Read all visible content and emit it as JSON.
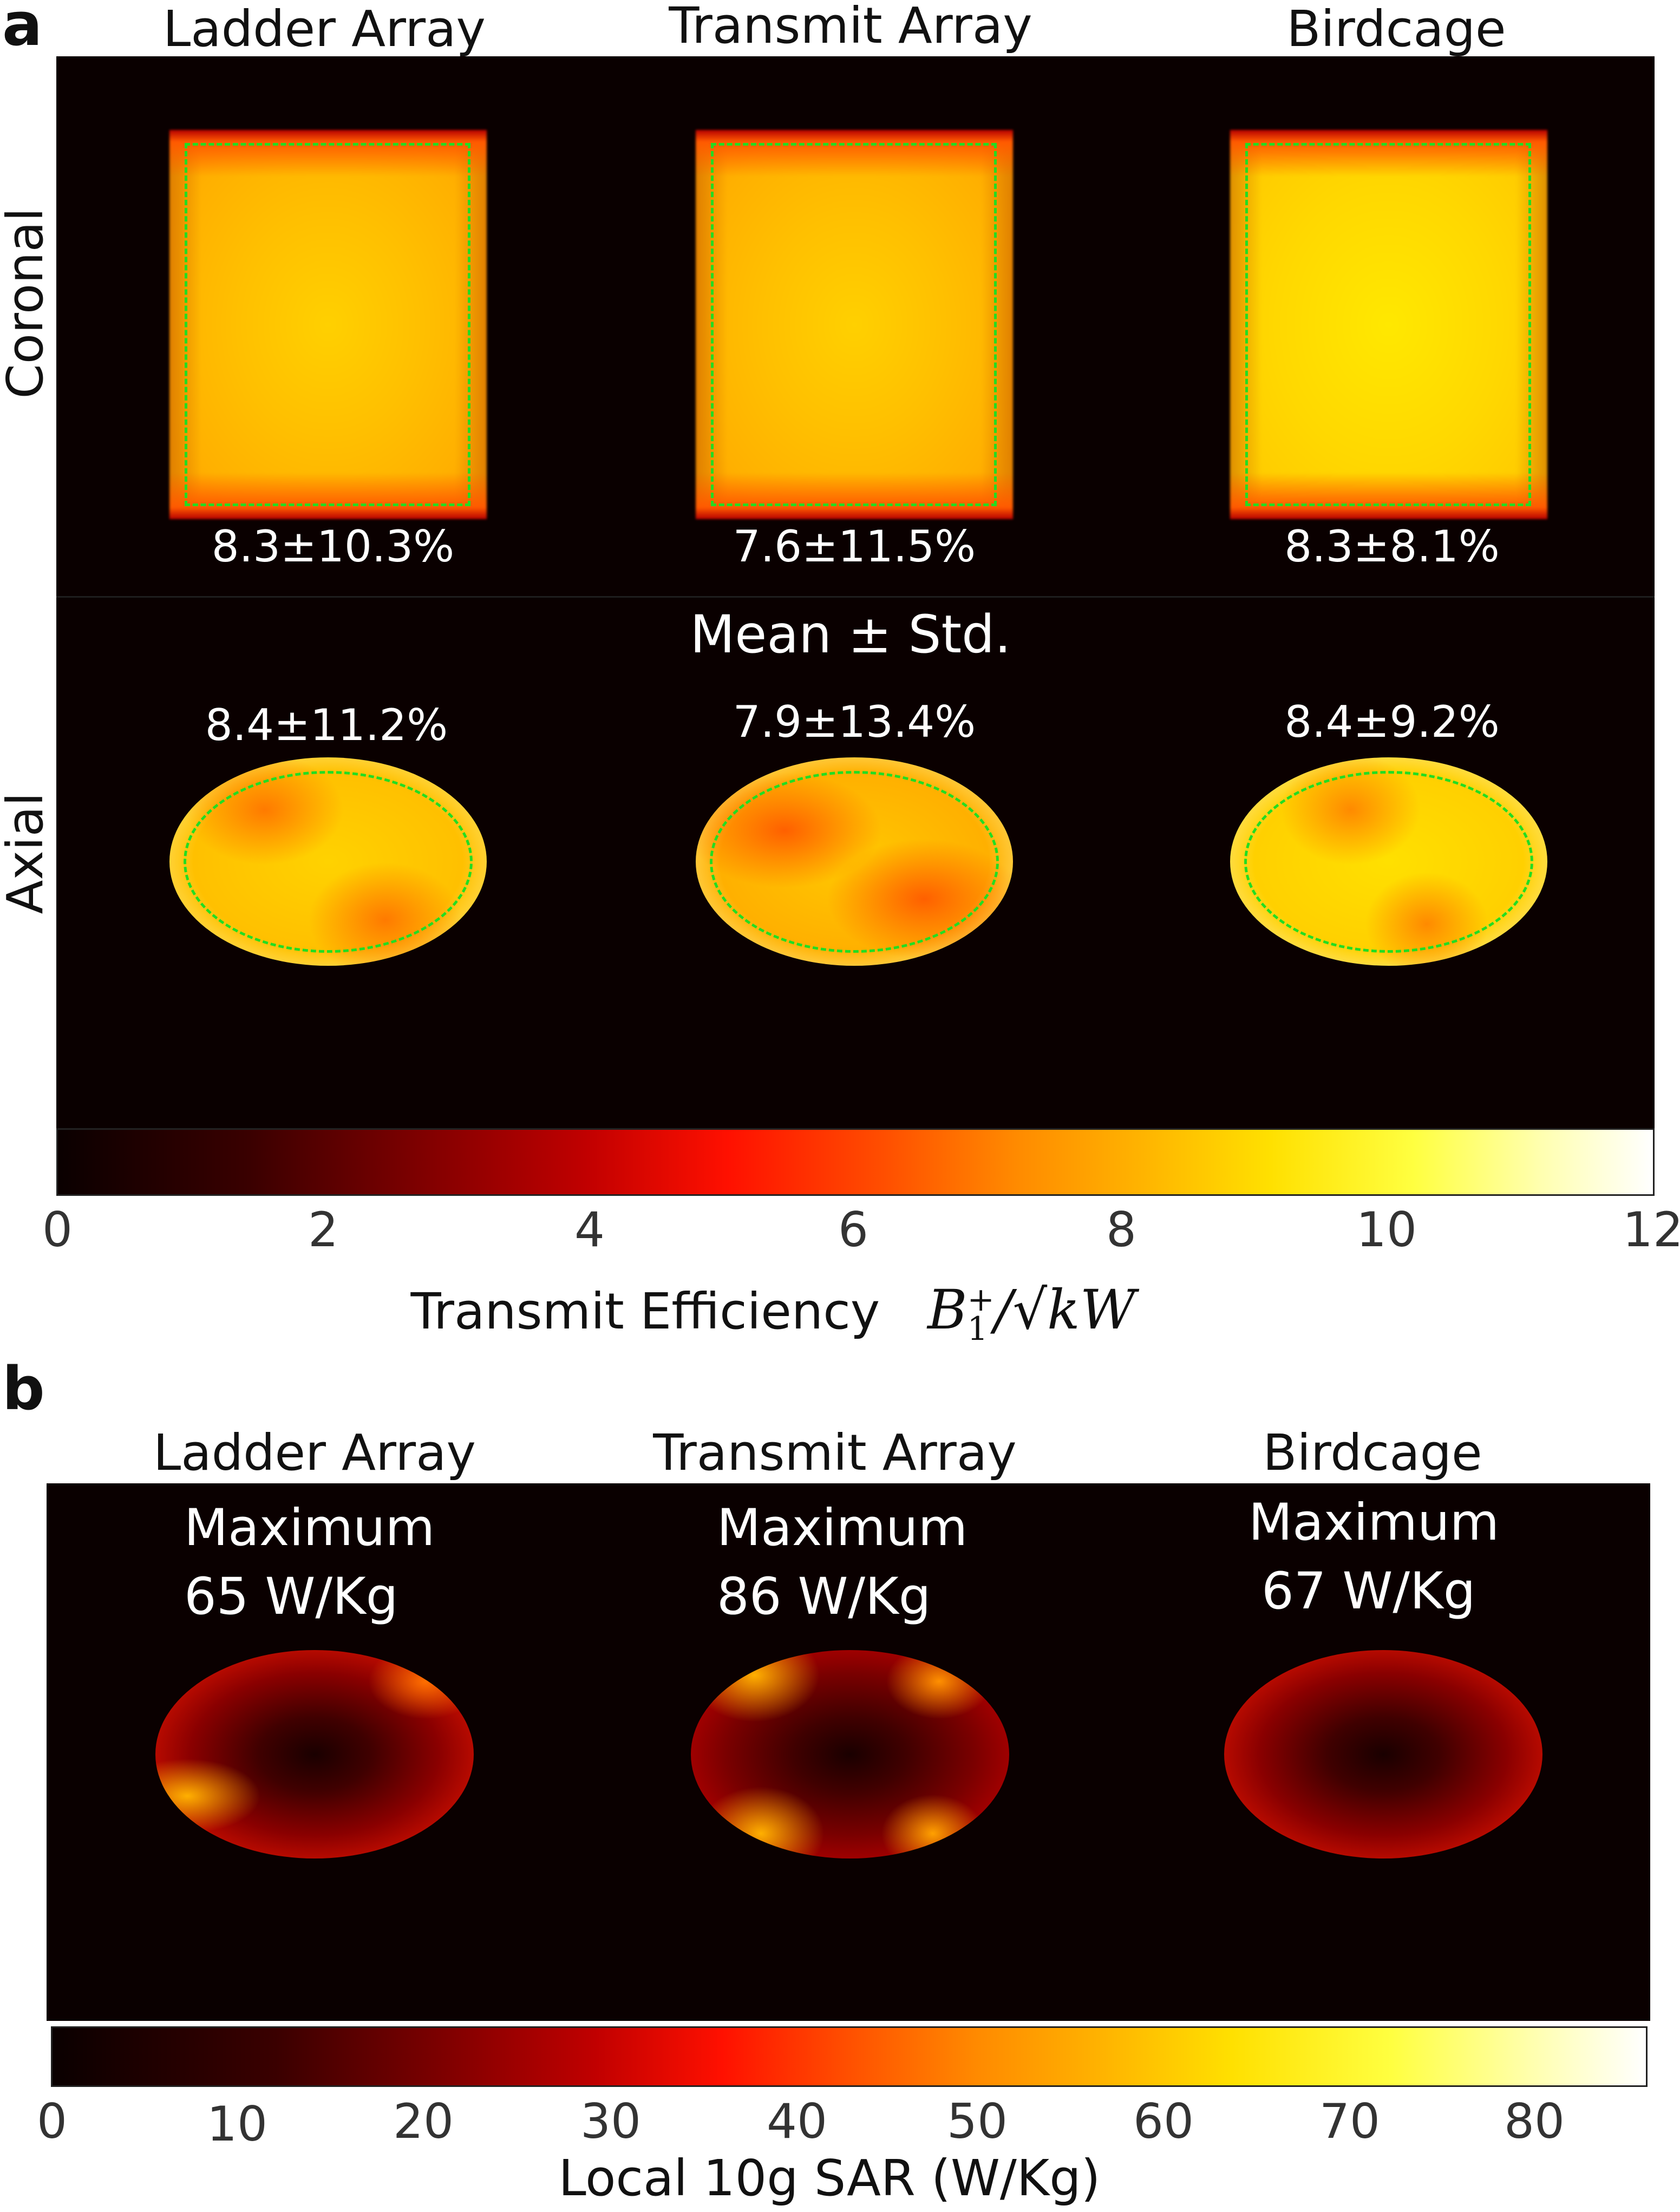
{
  "panel_a": {
    "letter": "a",
    "columns": [
      "Ladder Array",
      "Transmit Array",
      "Birdcage"
    ],
    "rows": [
      "Coronal",
      "Axial"
    ],
    "coronal_values": [
      "8.3±10.3%",
      "7.6±11.5%",
      "8.3±8.1%"
    ],
    "legend_note": "Mean ± Std.",
    "axial_values": [
      "8.4±11.2%",
      "7.9±13.4%",
      "8.4±9.2%"
    ],
    "colorbar": {
      "ticks": [
        "0",
        "2",
        "4",
        "6",
        "8",
        "10",
        "12"
      ],
      "label_text": "Transmit Efficiency",
      "label_math_B": "B",
      "label_math_sub": "1",
      "label_math_sup": "+",
      "label_math_rest": "/√kW",
      "colormap": "hot",
      "range": [
        0,
        12
      ]
    },
    "roi_color": "#22dd22"
  },
  "panel_b": {
    "letter": "b",
    "columns": [
      "Ladder Array",
      "Transmit Array",
      "Birdcage"
    ],
    "maximum_label": "Maximum",
    "maximum_values": [
      "65 W/Kg",
      "86 W/Kg",
      "67 W/Kg"
    ],
    "colorbar": {
      "ticks": [
        "0",
        "10",
        "20",
        "30",
        "40",
        "50",
        "60",
        "70",
        "80"
      ],
      "label": "Local 10g SAR (W/Kg)",
      "colormap": "hot",
      "range": [
        0,
        86
      ]
    }
  }
}
